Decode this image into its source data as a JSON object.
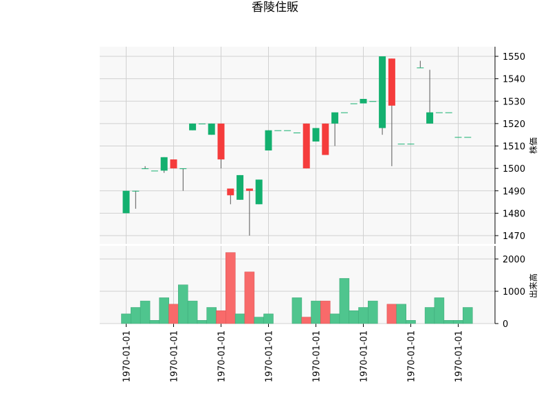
{
  "chart_data": {
    "type": "candlestick",
    "title": "香陵住販",
    "price_ylabel": "株価",
    "volume_ylabel": "出来高",
    "price_ylim": [
      1465,
      1555
    ],
    "price_ticks": [
      1470,
      1480,
      1490,
      1500,
      1510,
      1520,
      1530,
      1540,
      1550
    ],
    "volume_ylim": [
      0,
      2200
    ],
    "volume_ticks": [
      0,
      1000,
      2000
    ],
    "x_tick_labels": [
      "1970-01-01",
      "1970-01-01",
      "1970-01-01",
      "1970-01-01",
      "1970-01-01",
      "1970-01-01",
      "1970-01-01",
      "1970-01-01"
    ],
    "up_color": "#13b06f",
    "down_color": "#f53c3c",
    "volume_up_color": "#4fc58e",
    "volume_down_color": "#f86a6a",
    "candles": [
      {
        "o": 1480,
        "h": 1490,
        "l": 1480,
        "c": 1490,
        "v": 300
      },
      {
        "o": 1490,
        "h": 1490,
        "l": 1482,
        "c": 1490,
        "v": 500
      },
      {
        "o": 1500,
        "h": 1501,
        "l": 1500,
        "c": 1500,
        "v": 700
      },
      {
        "o": 1499,
        "h": 1499,
        "l": 1499,
        "c": 1499,
        "v": 100
      },
      {
        "o": 1499,
        "h": 1505,
        "l": 1498,
        "c": 1505,
        "v": 800
      },
      {
        "o": 1504,
        "h": 1504,
        "l": 1500,
        "c": 1500,
        "v": 600
      },
      {
        "o": 1500,
        "h": 1500,
        "l": 1490,
        "c": 1500,
        "v": 1200
      },
      {
        "o": 1517,
        "h": 1520,
        "l": 1517,
        "c": 1520,
        "v": 700
      },
      {
        "o": 1520,
        "h": 1520,
        "l": 1520,
        "c": 1520,
        "v": 100
      },
      {
        "o": 1515,
        "h": 1520,
        "l": 1515,
        "c": 1520,
        "v": 500
      },
      {
        "o": 1520,
        "h": 1520,
        "l": 1500,
        "c": 1504,
        "v": 400
      },
      {
        "o": 1491,
        "h": 1491,
        "l": 1484,
        "c": 1488,
        "v": 2200
      },
      {
        "o": 1486,
        "h": 1497,
        "l": 1486,
        "c": 1497,
        "v": 300
      },
      {
        "o": 1491,
        "h": 1491,
        "l": 1470,
        "c": 1490,
        "v": 1600
      },
      {
        "o": 1484,
        "h": 1495,
        "l": 1484,
        "c": 1495,
        "v": 200
      },
      {
        "o": 1508,
        "h": 1517,
        "l": 1508,
        "c": 1517,
        "v": 300
      },
      {
        "o": 1517,
        "h": 1517,
        "l": 1517,
        "c": 1517,
        "v": 0
      },
      {
        "o": 1517,
        "h": 1517,
        "l": 1517,
        "c": 1517,
        "v": 0
      },
      {
        "o": 1516,
        "h": 1516,
        "l": 1516,
        "c": 1516,
        "v": 800
      },
      {
        "o": 1520,
        "h": 1520,
        "l": 1500,
        "c": 1500,
        "v": 200
      },
      {
        "o": 1512,
        "h": 1518,
        "l": 1512,
        "c": 1518,
        "v": 700
      },
      {
        "o": 1520,
        "h": 1520,
        "l": 1506,
        "c": 1506,
        "v": 700
      },
      {
        "o": 1520,
        "h": 1525,
        "l": 1510,
        "c": 1525,
        "v": 300
      },
      {
        "o": 1525,
        "h": 1525,
        "l": 1525,
        "c": 1525,
        "v": 1400
      },
      {
        "o": 1529,
        "h": 1529,
        "l": 1529,
        "c": 1529,
        "v": 400
      },
      {
        "o": 1529,
        "h": 1531,
        "l": 1529,
        "c": 1531,
        "v": 500
      },
      {
        "o": 1530,
        "h": 1530,
        "l": 1530,
        "c": 1530,
        "v": 700
      },
      {
        "o": 1518,
        "h": 1550,
        "l": 1515,
        "c": 1550,
        "v": 0
      },
      {
        "o": 1549,
        "h": 1549,
        "l": 1501,
        "c": 1528,
        "v": 600
      },
      {
        "o": 1511,
        "h": 1511,
        "l": 1511,
        "c": 1511,
        "v": 600
      },
      {
        "o": 1511,
        "h": 1511,
        "l": 1511,
        "c": 1511,
        "v": 100
      },
      {
        "o": 1545,
        "h": 1548,
        "l": 1545,
        "c": 1545,
        "v": 0
      },
      {
        "o": 1520,
        "h": 1544,
        "l": 1520,
        "c": 1525,
        "v": 500
      },
      {
        "o": 1525,
        "h": 1525,
        "l": 1525,
        "c": 1525,
        "v": 800
      },
      {
        "o": 1525,
        "h": 1525,
        "l": 1525,
        "c": 1525,
        "v": 100
      },
      {
        "o": 1514,
        "h": 1514,
        "l": 1514,
        "c": 1514,
        "v": 100
      },
      {
        "o": 1514,
        "h": 1514,
        "l": 1514,
        "c": 1514,
        "v": 500
      }
    ]
  }
}
